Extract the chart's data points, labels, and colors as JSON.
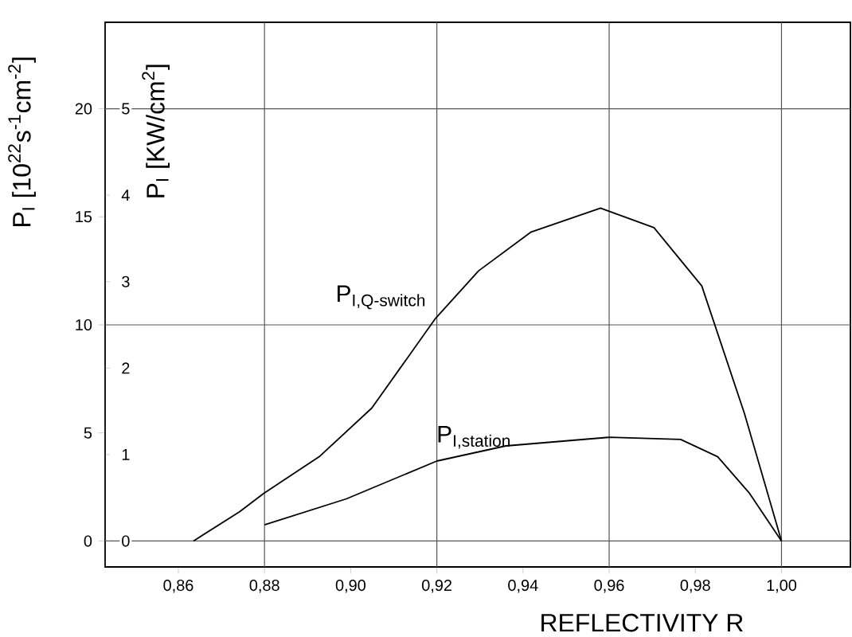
{
  "chart_data": {
    "type": "line",
    "xlabel": "REFLECTIVITY R",
    "ylabel": "P$_{I}$ [10$^{22}$s$^{-1}$cm$^{-2}$]",
    "y2label": "P$_{I}$ [KW/cm$^{2}$]",
    "xlim": [
      0.843,
      1.016
    ],
    "xticks": [
      {
        "value": 0.86,
        "label": "0,86"
      },
      {
        "value": 0.88,
        "label": "0,88"
      },
      {
        "value": 0.9,
        "label": "0,90"
      },
      {
        "value": 0.92,
        "label": "0,92"
      },
      {
        "value": 0.94,
        "label": "0,94"
      },
      {
        "value": 0.96,
        "label": "0,96"
      },
      {
        "value": 0.98,
        "label": "0,98"
      },
      {
        "value": 1.0,
        "label": "1,00"
      }
    ],
    "ylim": [
      -1.2,
      24
    ],
    "yticks": [
      0,
      5,
      10,
      15,
      20
    ],
    "y2lim": [
      -0.3,
      6
    ],
    "y2ticks": [
      0,
      1,
      2,
      3,
      4,
      5
    ],
    "grid": false,
    "legend": false,
    "marker": "none",
    "line_style": "solid",
    "ref_lines": [
      {
        "axis": "x",
        "value": 0.88
      },
      {
        "axis": "x",
        "value": 0.92
      },
      {
        "axis": "x",
        "value": 0.96
      },
      {
        "axis": "x",
        "value": 1.0
      },
      {
        "axis": "y",
        "value": 0
      },
      {
        "axis": "y",
        "value": 10
      },
      {
        "axis": "y",
        "value": 20
      }
    ],
    "series": [
      {
        "name": "P$_{I,Q-switch}$",
        "color": "#000000",
        "x": [
          0.8635,
          0.8742,
          0.8798,
          0.8927,
          0.9049,
          0.9197,
          0.9297,
          0.9419,
          0.958,
          0.9704,
          0.9815,
          0.9914,
          1.0
        ],
        "values": [
          0,
          1.35,
          2.2,
          3.9,
          6.15,
          10.3,
          12.5,
          14.3,
          15.4,
          14.5,
          11.8,
          5.9,
          0
        ]
      },
      {
        "name": "P$_{I,station}$",
        "color": "#000000",
        "x": [
          0.88,
          0.899,
          0.92,
          0.936,
          0.96,
          0.9766,
          0.9852,
          0.9926,
          1.0
        ],
        "values": [
          0.75,
          1.95,
          3.7,
          4.4,
          4.8,
          4.7,
          3.9,
          2.2,
          0
        ]
      }
    ]
  }
}
